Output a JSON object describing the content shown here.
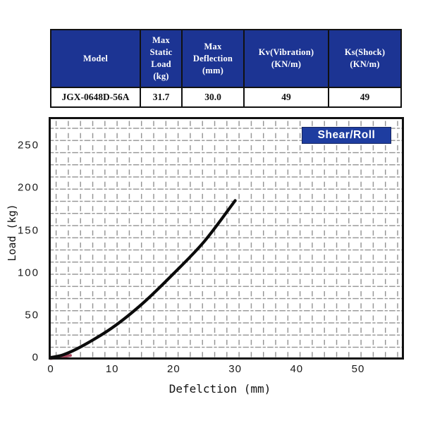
{
  "table": {
    "headers": [
      [
        "Model"
      ],
      [
        "Max",
        "Static",
        "Load",
        "(kg)"
      ],
      [
        "Max",
        "Deflection",
        "(mm)"
      ],
      [
        "Kv(Vibration)",
        "(KN/m)"
      ],
      [
        "Ks(Shock)",
        "(KN/m)"
      ]
    ],
    "row": [
      "JGX-0648D-56A",
      "31.7",
      "30.0",
      "49",
      "49"
    ],
    "header_bg": "#1c3493",
    "header_text_color": "#ffffff",
    "border_color": "#111111"
  },
  "chart": {
    "badge_label": "Shear/Roll",
    "badge_bg": "#1e3da0",
    "grid_color": "#909090",
    "frame_color": "#111111"
  },
  "chart_data": {
    "type": "line",
    "title": "",
    "xlabel": "Defelction (mm)",
    "ylabel": "Load (kg)",
    "xticks": [
      0,
      10,
      20,
      30,
      40,
      50
    ],
    "yticks": [
      0,
      50,
      100,
      150,
      200,
      250
    ],
    "xlim": [
      0,
      57
    ],
    "ylim": [
      0,
      281
    ],
    "grid": "dashed-both-directions",
    "legend_position": "top-right",
    "series": [
      {
        "name": "Shear/Roll",
        "color": "#0b0b0b",
        "x": [
          0,
          2,
          5,
          10,
          15,
          20,
          25,
          30
        ],
        "y": [
          0,
          3,
          13,
          35,
          64,
          99,
          137,
          185
        ]
      }
    ],
    "start_marker": {
      "color": "#a8485f",
      "x_end": 3.2,
      "y_end": 4
    }
  }
}
